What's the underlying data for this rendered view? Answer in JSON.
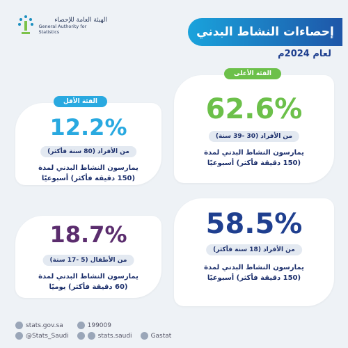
{
  "header": {
    "title": "إحصاءات النشاط البدني",
    "subtitle": "لعام 2024م",
    "org_ar": "الهيئة العامة للإحصاء",
    "org_en": "General Authority for Statistics"
  },
  "cards": [
    {
      "badge": "الفئة الأعلى",
      "value": "62.6%",
      "group": "من الأفراد (30 -39 سنة)",
      "line1": "يمارسون النشاط البدني لمدة",
      "line2": "(150 دقيقة فأكثر) أسبوعيًا"
    },
    {
      "badge": "الفئة الأقل",
      "value": "12.2%",
      "group": "من الأفراد (80 سنة فأكثر)",
      "line1": "يمارسون النشاط البدني لمدة",
      "line2": "(150 دقيقة فأكثر) أسبوعيًا"
    },
    {
      "value": "58.5%",
      "group": "من الأفراد (18 سنة فأكثر)",
      "line1": "يمارسون النشاط البدني لمدة",
      "line2": "(150 دقيقة فأكثر) أسبوعيًا"
    },
    {
      "value": "18.7%",
      "group": "من الأطفال (5 -17 سنة)",
      "line1": "يمارسون النشاط البدني لمدة",
      "line2": "(60 دقيقة فأكثر) يوميًا"
    }
  ],
  "footer": {
    "website": "stats.gov.sa",
    "phone": "199009",
    "twitter": "@Stats_Saudi",
    "facebook": "stats.saudi",
    "other": "Gastat"
  }
}
